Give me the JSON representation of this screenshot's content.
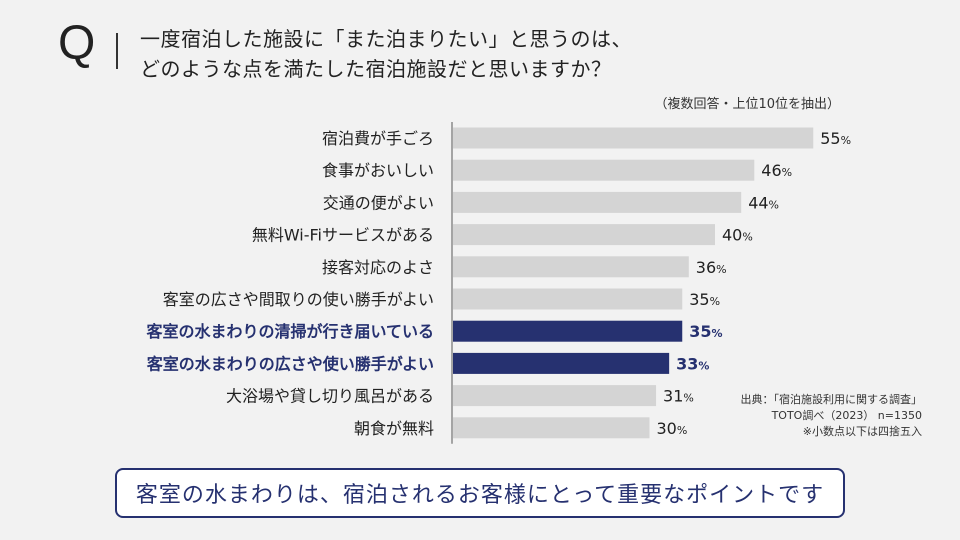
{
  "header": {
    "q_letter": "Q",
    "question_line1": "一度宿泊した施設に「また泊まりたい」と思うのは、",
    "question_line2": "どのような点を満たした宿泊施設だと思いますか？"
  },
  "note": "（複数回答・上位10位を抽出）",
  "chart_data": {
    "type": "bar",
    "orientation": "horizontal",
    "categories": [
      "宿泊費が手ごろ",
      "食事がおいしい",
      "交通の便がよい",
      "無料Wi-Fiサービスがある",
      "接客対応のよさ",
      "客室の広さや間取りの使い勝手がよい",
      "客室の水まわりの清掃が行き届いている",
      "客室の水まわりの広さや使い勝手がよい",
      "大浴場や貸し切り風呂がある",
      "朝食が無料"
    ],
    "values": [
      55,
      46,
      44,
      40,
      36,
      35,
      35,
      33,
      31,
      30
    ],
    "unit": "%",
    "highlighted": [
      6,
      7
    ],
    "colors": {
      "default": "#d4d4d4",
      "highlight": "#263170",
      "label_highlight": "#263170"
    },
    "xlim": [
      0,
      100
    ],
    "grid": false
  },
  "source": {
    "line1": "出典：「宿泊施設利用に関する調査」",
    "line2": "TOTO調べ（2023） n=1350",
    "line3": "※小数点以下は四捨五入"
  },
  "callout": "客室の水まわりは、宿泊されるお客様にとって重要なポイントです"
}
